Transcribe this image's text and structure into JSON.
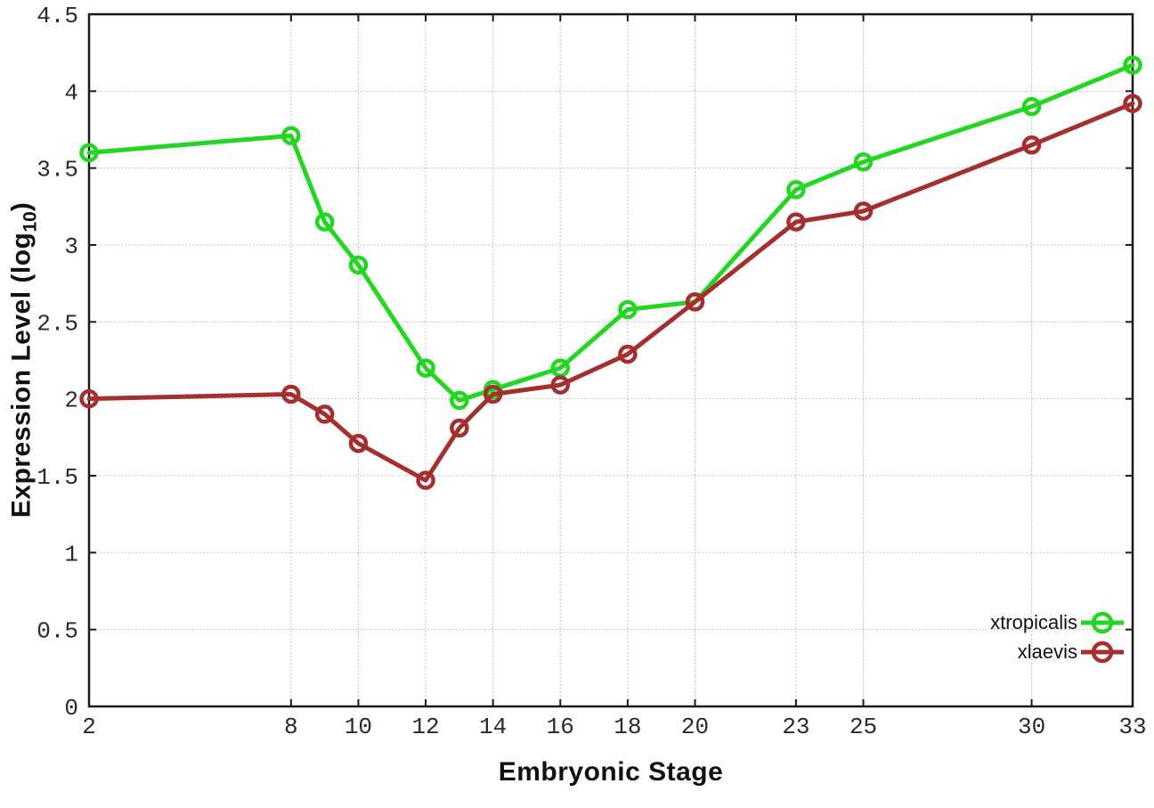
{
  "chart_data": {
    "type": "line",
    "title": "",
    "xlabel": "Embryonic Stage",
    "ylabel": "Expression Level (log10)",
    "ylabel_parts": {
      "main": "Expression Level (log",
      "sub": "10",
      "suffix": ")"
    },
    "xlim": [
      2,
      33
    ],
    "ylim": [
      0,
      4.5
    ],
    "grid": true,
    "legend_position": "bottom-right",
    "x_ticks": [
      2,
      8,
      10,
      12,
      14,
      16,
      18,
      20,
      23,
      25,
      30,
      33
    ],
    "x_tick_labels": [
      "2",
      "8",
      "10",
      "12",
      "14",
      "16",
      "18",
      "20",
      "23",
      "25",
      "30",
      "33"
    ],
    "y_ticks": [
      0,
      0.5,
      1,
      1.5,
      2,
      2.5,
      3,
      3.5,
      4,
      4.5
    ],
    "y_tick_labels": [
      "0",
      "0.5",
      "1",
      "1.5",
      "2",
      "2.5",
      "3",
      "3.5",
      "4",
      "4.5"
    ],
    "axis_color": "#1a1a1a",
    "grid_color": "#b0b0b0",
    "tick_label_color": "#2a2a2a",
    "series": [
      {
        "name": "xtropicalis",
        "color": "#22d622",
        "x": [
          2,
          8,
          9,
          10,
          12,
          13,
          14,
          16,
          18,
          20,
          23,
          25,
          30,
          33
        ],
        "y": [
          3.6,
          3.71,
          3.15,
          2.87,
          2.2,
          1.99,
          2.06,
          2.2,
          2.58,
          2.63,
          3.36,
          3.54,
          3.9,
          4.17
        ]
      },
      {
        "name": "xlaevis",
        "color": "#a52f2f",
        "x": [
          2,
          8,
          9,
          10,
          12,
          13,
          14,
          16,
          18,
          20,
          23,
          25,
          30,
          33
        ],
        "y": [
          2.0,
          2.03,
          1.9,
          1.71,
          1.47,
          1.81,
          2.03,
          2.09,
          2.29,
          2.63,
          3.15,
          3.22,
          3.65,
          3.92
        ]
      }
    ]
  }
}
